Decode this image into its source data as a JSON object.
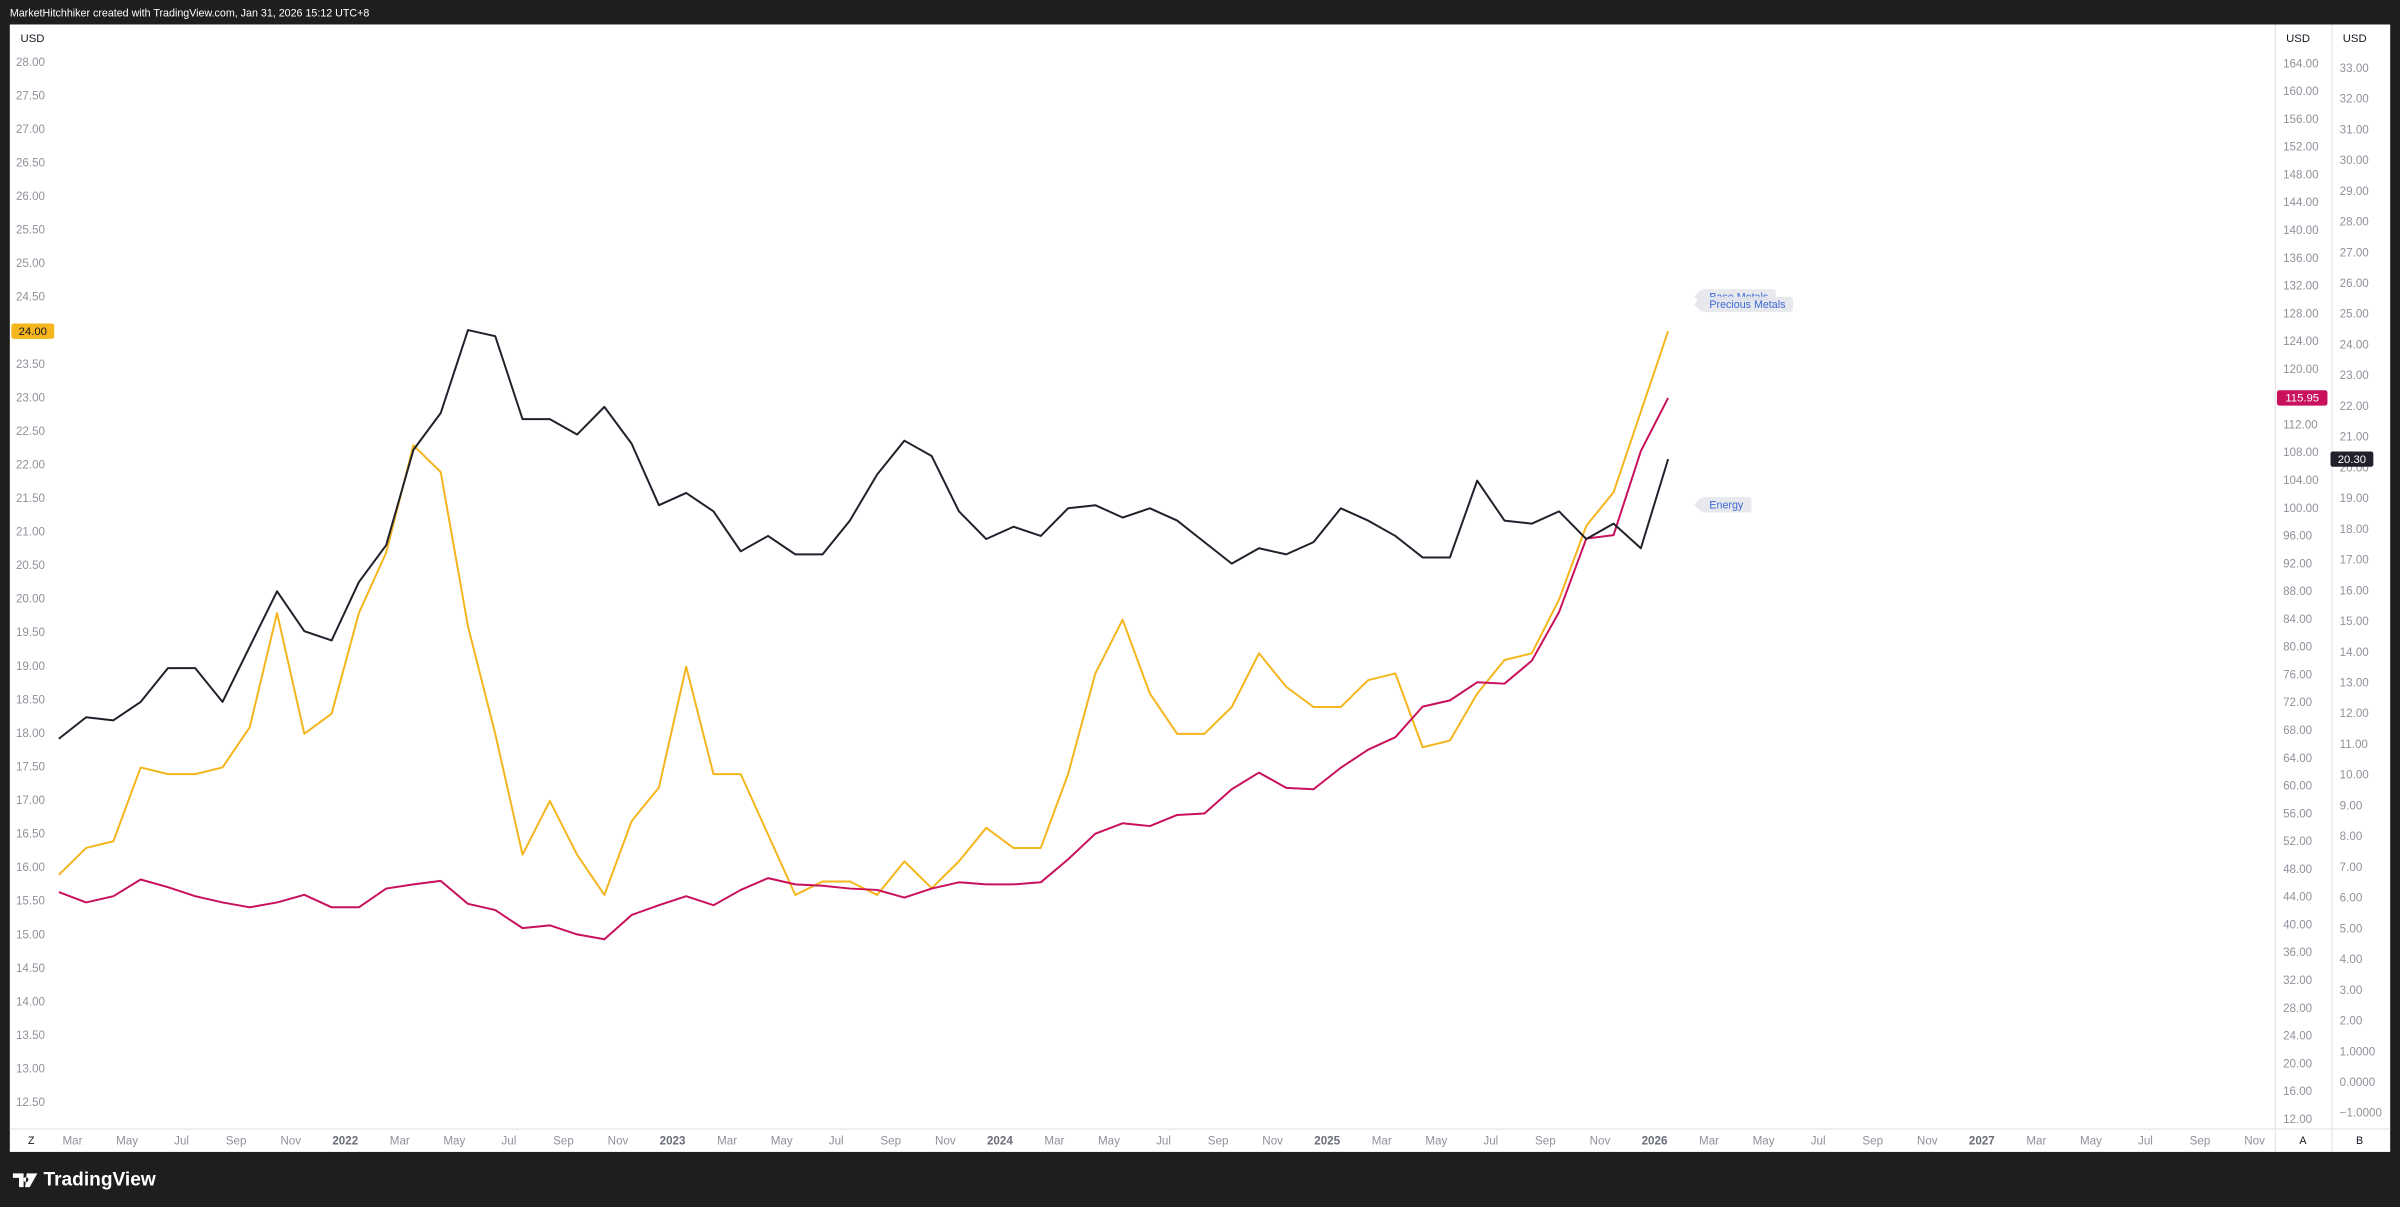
{
  "header": {
    "attribution": "MarketHitchhiker created with TradingView.com, Jan 31, 2026 15:12 UTC+8"
  },
  "footer": {
    "brand": "TradingView"
  },
  "ui": {
    "buttons": [
      "Z",
      "A",
      "B"
    ]
  },
  "chart_data": {
    "type": "line",
    "y_label": "USD",
    "y2_label": "USD",
    "y3_label": "USD",
    "grid": false,
    "x": [
      "2021-02",
      "2021-03",
      "2021-04",
      "2021-05",
      "2021-06",
      "2021-07",
      "2021-08",
      "2021-09",
      "2021-10",
      "2021-11",
      "2021-12",
      "2022-01",
      "2022-02",
      "2022-03",
      "2022-04",
      "2022-05",
      "2022-06",
      "2022-07",
      "2022-08",
      "2022-09",
      "2022-10",
      "2022-11",
      "2022-12",
      "2023-01",
      "2023-02",
      "2023-03",
      "2023-04",
      "2023-05",
      "2023-06",
      "2023-07",
      "2023-08",
      "2023-09",
      "2023-10",
      "2023-11",
      "2023-12",
      "2024-01",
      "2024-02",
      "2024-03",
      "2024-04",
      "2024-05",
      "2024-06",
      "2024-07",
      "2024-08",
      "2024-09",
      "2024-10",
      "2024-11",
      "2024-12",
      "2025-01",
      "2025-02",
      "2025-03",
      "2025-04",
      "2025-05",
      "2025-06",
      "2025-07",
      "2025-08",
      "2025-09",
      "2025-10",
      "2025-11",
      "2025-12",
      "2026-01"
    ],
    "xlim": [
      "2021-01",
      "2027-11"
    ],
    "xticks": [
      {
        "value": "2021-03",
        "label": "Mar"
      },
      {
        "value": "2021-05",
        "label": "May"
      },
      {
        "value": "2021-07",
        "label": "Jul"
      },
      {
        "value": "2021-09",
        "label": "Sep"
      },
      {
        "value": "2021-11",
        "label": "Nov"
      },
      {
        "value": "2022-01",
        "label": "2022"
      },
      {
        "value": "2022-03",
        "label": "Mar"
      },
      {
        "value": "2022-05",
        "label": "May"
      },
      {
        "value": "2022-07",
        "label": "Jul"
      },
      {
        "value": "2022-09",
        "label": "Sep"
      },
      {
        "value": "2022-11",
        "label": "Nov"
      },
      {
        "value": "2023-01",
        "label": "2023"
      },
      {
        "value": "2023-03",
        "label": "Mar"
      },
      {
        "value": "2023-05",
        "label": "May"
      },
      {
        "value": "2023-07",
        "label": "Jul"
      },
      {
        "value": "2023-09",
        "label": "Sep"
      },
      {
        "value": "2023-11",
        "label": "Nov"
      },
      {
        "value": "2024-01",
        "label": "2024"
      },
      {
        "value": "2024-03",
        "label": "Mar"
      },
      {
        "value": "2024-05",
        "label": "May"
      },
      {
        "value": "2024-07",
        "label": "Jul"
      },
      {
        "value": "2024-09",
        "label": "Sep"
      },
      {
        "value": "2024-11",
        "label": "Nov"
      },
      {
        "value": "2025-01",
        "label": "2025"
      },
      {
        "value": "2025-03",
        "label": "Mar"
      },
      {
        "value": "2025-05",
        "label": "May"
      },
      {
        "value": "2025-07",
        "label": "Jul"
      },
      {
        "value": "2025-09",
        "label": "Sep"
      },
      {
        "value": "2025-11",
        "label": "Nov"
      },
      {
        "value": "2026-01",
        "label": "2026"
      },
      {
        "value": "2026-03",
        "label": "Mar"
      },
      {
        "value": "2026-05",
        "label": "May"
      },
      {
        "value": "2026-07",
        "label": "Jul"
      },
      {
        "value": "2026-09",
        "label": "Sep"
      },
      {
        "value": "2026-11",
        "label": "Nov"
      },
      {
        "value": "2027-01",
        "label": "2027"
      },
      {
        "value": "2027-03",
        "label": "Mar"
      },
      {
        "value": "2027-05",
        "label": "May"
      },
      {
        "value": "2027-07",
        "label": "Jul"
      },
      {
        "value": "2027-09",
        "label": "Sep"
      },
      {
        "value": "2027-11",
        "label": "Nov"
      }
    ],
    "ylim": [
      12.5,
      28
    ],
    "yticks": [
      {
        "value": 12.5,
        "label": "12.50"
      },
      {
        "value": 13,
        "label": "13.00"
      },
      {
        "value": 13.5,
        "label": "13.50"
      },
      {
        "value": 14,
        "label": "14.00"
      },
      {
        "value": 14.5,
        "label": "14.50"
      },
      {
        "value": 15,
        "label": "15.00"
      },
      {
        "value": 15.5,
        "label": "15.50"
      },
      {
        "value": 16,
        "label": "16.00"
      },
      {
        "value": 16.5,
        "label": "16.50"
      },
      {
        "value": 17,
        "label": "17.00"
      },
      {
        "value": 17.5,
        "label": "17.50"
      },
      {
        "value": 18,
        "label": "18.00"
      },
      {
        "value": 18.5,
        "label": "18.50"
      },
      {
        "value": 19,
        "label": "19.00"
      },
      {
        "value": 19.5,
        "label": "19.50"
      },
      {
        "value": 20,
        "label": "20.00"
      },
      {
        "value": 20.5,
        "label": "20.50"
      },
      {
        "value": 21,
        "label": "21.00"
      },
      {
        "value": 21.5,
        "label": "21.50"
      },
      {
        "value": 22,
        "label": "22.00"
      },
      {
        "value": 22.5,
        "label": "22.50"
      },
      {
        "value": 23,
        "label": "23.00"
      },
      {
        "value": 23.5,
        "label": "23.50"
      },
      {
        "value": 24,
        "label": "24.00"
      },
      {
        "value": 24.5,
        "label": "24.50"
      },
      {
        "value": 25,
        "label": "25.00"
      },
      {
        "value": 25.5,
        "label": "25.50"
      },
      {
        "value": 26,
        "label": "26.00"
      },
      {
        "value": 26.5,
        "label": "26.50"
      },
      {
        "value": 27,
        "label": "27.00"
      },
      {
        "value": 27.5,
        "label": "27.50"
      },
      {
        "value": 28,
        "label": "28.00"
      }
    ],
    "y2lim": [
      12,
      164
    ],
    "y2ticks": [
      {
        "value": 12,
        "label": "12.00"
      },
      {
        "value": 16,
        "label": "16.00"
      },
      {
        "value": 20,
        "label": "20.00"
      },
      {
        "value": 24,
        "label": "24.00"
      },
      {
        "value": 28,
        "label": "28.00"
      },
      {
        "value": 32,
        "label": "32.00"
      },
      {
        "value": 36,
        "label": "36.00"
      },
      {
        "value": 40,
        "label": "40.00"
      },
      {
        "value": 44,
        "label": "44.00"
      },
      {
        "value": 48,
        "label": "48.00"
      },
      {
        "value": 52,
        "label": "52.00"
      },
      {
        "value": 56,
        "label": "56.00"
      },
      {
        "value": 60,
        "label": "60.00"
      },
      {
        "value": 64,
        "label": "64.00"
      },
      {
        "value": 68,
        "label": "68.00"
      },
      {
        "value": 72,
        "label": "72.00"
      },
      {
        "value": 76,
        "label": "76.00"
      },
      {
        "value": 80,
        "label": "80.00"
      },
      {
        "value": 84,
        "label": "84.00"
      },
      {
        "value": 88,
        "label": "88.00"
      },
      {
        "value": 92,
        "label": "92.00"
      },
      {
        "value": 96,
        "label": "96.00"
      },
      {
        "value": 100,
        "label": "100.00"
      },
      {
        "value": 104,
        "label": "104.00"
      },
      {
        "value": 108,
        "label": "108.00"
      },
      {
        "value": 112,
        "label": "112.00"
      },
      {
        "value": 116,
        "label": "116.00"
      },
      {
        "value": 120,
        "label": "120.00"
      },
      {
        "value": 124,
        "label": "124.00"
      },
      {
        "value": 128,
        "label": "128.00"
      },
      {
        "value": 132,
        "label": "132.00"
      },
      {
        "value": 136,
        "label": "136.00"
      },
      {
        "value": 140,
        "label": "140.00"
      },
      {
        "value": 144,
        "label": "144.00"
      },
      {
        "value": 148,
        "label": "148.00"
      },
      {
        "value": 152,
        "label": "152.00"
      },
      {
        "value": 156,
        "label": "156.00"
      },
      {
        "value": 160,
        "label": "160.00"
      },
      {
        "value": 164,
        "label": "164.00"
      }
    ],
    "y3lim": [
      -1,
      33
    ],
    "y3ticks": [
      {
        "value": -1,
        "label": "−1.0000"
      },
      {
        "value": 0,
        "label": "0.0000"
      },
      {
        "value": 1,
        "label": "1.0000"
      },
      {
        "value": 2,
        "label": "2.00"
      },
      {
        "value": 3,
        "label": "3.00"
      },
      {
        "value": 4,
        "label": "4.00"
      },
      {
        "value": 5,
        "label": "5.00"
      },
      {
        "value": 6,
        "label": "6.00"
      },
      {
        "value": 7,
        "label": "7.00"
      },
      {
        "value": 8,
        "label": "8.00"
      },
      {
        "value": 9,
        "label": "9.00"
      },
      {
        "value": 10,
        "label": "10.00"
      },
      {
        "value": 11,
        "label": "11.00"
      },
      {
        "value": 12,
        "label": "12.00"
      },
      {
        "value": 13,
        "label": "13.00"
      },
      {
        "value": 14,
        "label": "14.00"
      },
      {
        "value": 15,
        "label": "15.00"
      },
      {
        "value": 16,
        "label": "16.00"
      },
      {
        "value": 17,
        "label": "17.00"
      },
      {
        "value": 18,
        "label": "18.00"
      },
      {
        "value": 19,
        "label": "19.00"
      },
      {
        "value": 20,
        "label": "20.00"
      },
      {
        "value": 21,
        "label": "21.00"
      },
      {
        "value": 22,
        "label": "22.00"
      },
      {
        "value": 23,
        "label": "23.00"
      },
      {
        "value": 24,
        "label": "24.00"
      },
      {
        "value": 25,
        "label": "25.00"
      },
      {
        "value": 26,
        "label": "26.00"
      },
      {
        "value": 27,
        "label": "27.00"
      },
      {
        "value": 28,
        "label": "28.00"
      },
      {
        "value": 29,
        "label": "29.00"
      },
      {
        "value": 30,
        "label": "30.00"
      },
      {
        "value": 31,
        "label": "31.00"
      },
      {
        "value": 32,
        "label": "32.00"
      },
      {
        "value": 33,
        "label": "33.00"
      }
    ],
    "series": [
      {
        "name": "Base Metals",
        "color": "#f5b51d",
        "axis": "y",
        "price_label": "24.00",
        "values": [
          15.9,
          16.3,
          16.4,
          17.5,
          17.4,
          17.4,
          17.5,
          18.1,
          19.8,
          18.0,
          18.3,
          19.8,
          20.7,
          22.3,
          21.9,
          19.6,
          18.0,
          16.2,
          17.0,
          16.2,
          15.6,
          16.7,
          17.2,
          19.0,
          17.4,
          17.4,
          16.5,
          15.6,
          15.8,
          15.8,
          15.6,
          16.1,
          15.7,
          16.1,
          16.6,
          16.3,
          16.3,
          17.4,
          18.9,
          19.7,
          18.6,
          18.0,
          18.0,
          18.4,
          19.2,
          18.7,
          18.4,
          18.4,
          18.8,
          18.9,
          17.8,
          17.9,
          18.6,
          19.1,
          19.2,
          20.0,
          21.1,
          21.6,
          22.8,
          24
        ]
      },
      {
        "name": "Precious Metals",
        "color": "#c8105c",
        "axis": "y2",
        "price_label": "115.95",
        "values": [
          44.8,
          43.3,
          44.2,
          46.6,
          45.5,
          44.2,
          43.3,
          42.6,
          43.3,
          44.4,
          42.6,
          42.6,
          45.3,
          45.9,
          46.4,
          43.1,
          42.2,
          39.6,
          40.0,
          38.7,
          38.0,
          41.5,
          42.9,
          44.2,
          42.9,
          45.1,
          46.8,
          45.9,
          45.7,
          45.3,
          45.1,
          44.0,
          45.3,
          46.2,
          45.9,
          45.9,
          46.2,
          49.5,
          53.2,
          54.7,
          54.3,
          55.9,
          56.1,
          59.6,
          62.0,
          59.8,
          59.6,
          62.7,
          65.3,
          67.1,
          71.5,
          72.4,
          75.0,
          74.8,
          78.1,
          85.1,
          95.7,
          96.2,
          108.3,
          115.95
        ]
      },
      {
        "name": "Energy",
        "color": "#20212b",
        "axis": "y3",
        "price_label": "20.30",
        "values": [
          11.2,
          11.9,
          11.8,
          12.4,
          13.5,
          13.5,
          12.4,
          14.2,
          16.0,
          14.7,
          14.4,
          16.3,
          17.5,
          20.6,
          21.8,
          24.5,
          24.3,
          21.6,
          21.6,
          21.1,
          22.0,
          20.8,
          18.8,
          19.2,
          18.6,
          17.3,
          17.8,
          17.2,
          17.2,
          18.3,
          19.8,
          20.9,
          20.4,
          18.6,
          17.7,
          18.1,
          17.8,
          18.7,
          18.8,
          18.4,
          18.7,
          18.3,
          17.6,
          16.9,
          17.4,
          17.2,
          17.6,
          18.7,
          18.3,
          17.8,
          17.1,
          17.1,
          19.6,
          18.3,
          18.2,
          18.6,
          17.7,
          18.2,
          17.4,
          20.3
        ]
      }
    ]
  }
}
